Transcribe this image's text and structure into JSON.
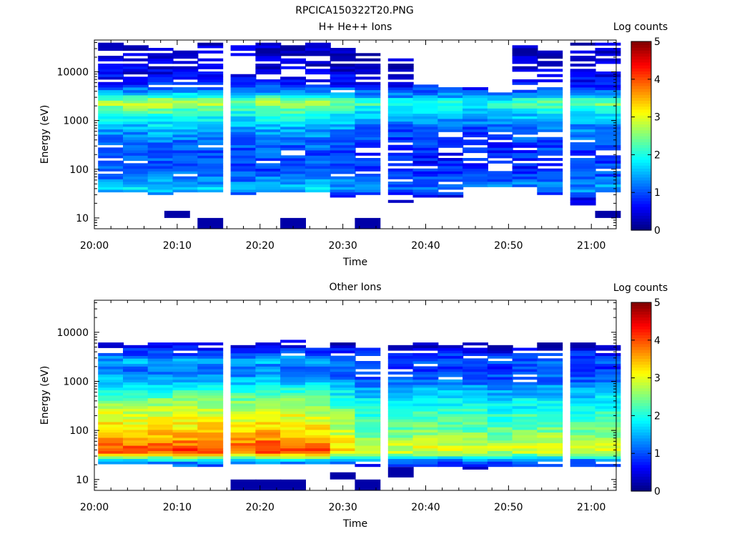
{
  "figure_title": "RPCICA150322T20.PNG",
  "chart_data": [
    {
      "type": "heatmap",
      "title": "H+ He++ Ions",
      "xlabel": "Time",
      "ylabel": "Energy (eV)",
      "x_ticks": [
        "20:00",
        "20:10",
        "20:20",
        "20:30",
        "20:40",
        "20:50",
        "21:00"
      ],
      "xlim": [
        "20:00",
        "21:03"
      ],
      "y_scale": "log",
      "y_ticks": [
        "10",
        "100",
        "1000",
        "10000"
      ],
      "ylim": [
        6,
        45000
      ],
      "colorbar": {
        "label": "Log counts",
        "ticks": [
          "0",
          "1",
          "2",
          "3",
          "4",
          "5"
        ],
        "range": [
          0,
          5
        ],
        "colormap": "jet"
      },
      "time_bins": [
        "20:02",
        "20:05",
        "20:08",
        "20:11",
        "20:14",
        "20:18",
        "20:21",
        "20:24",
        "20:27",
        "20:30",
        "20:33",
        "20:37",
        "20:40",
        "20:43",
        "20:46",
        "20:49",
        "20:52",
        "20:55",
        "20:59",
        "21:02"
      ],
      "profile": {
        "energy_ev": [
          6,
          10,
          14,
          20,
          28,
          35,
          40,
          50,
          70,
          100,
          150,
          200,
          300,
          500,
          700,
          1000,
          1400,
          1800,
          2200,
          2600,
          3000,
          4000,
          6000,
          10000,
          20000,
          45000
        ],
        "log_counts": [
          0.2,
          0.3,
          0.4,
          0.5,
          0.8,
          1.4,
          1.7,
          1.5,
          1.2,
          1.0,
          1.0,
          1.0,
          1.1,
          1.3,
          1.5,
          1.8,
          2.1,
          2.4,
          2.7,
          2.6,
          2.1,
          1.3,
          0.8,
          0.5,
          0.4,
          0.3
        ]
      },
      "time_factor": [
        1.0,
        1.0,
        1.05,
        1.0,
        1.0,
        0.9,
        1.0,
        1.0,
        1.0,
        0.9,
        0.8,
        0.7,
        0.75,
        0.75,
        0.7,
        0.75,
        0.8,
        0.85,
        0.85,
        0.9
      ],
      "low_cutoff_ev": [
        32,
        32,
        30,
        32,
        32,
        30,
        32,
        32,
        32,
        28,
        28,
        22,
        28,
        28,
        45,
        45,
        45,
        24,
        18,
        28
      ],
      "high_cutoff_ev": [
        40000,
        40000,
        35000,
        35000,
        40000,
        35000,
        40000,
        35000,
        40000,
        38000,
        25000,
        20000,
        7000,
        5000,
        5000,
        4000,
        35000,
        40000,
        40000,
        40000
      ],
      "low_energy_blocks": [
        {
          "time": "20:14",
          "energy_range_ev": [
            6,
            10
          ],
          "log_counts": 0.2
        },
        {
          "time": "20:24",
          "energy_range_ev": [
            6,
            10
          ],
          "log_counts": 0.2
        },
        {
          "time": "20:33",
          "energy_range_ev": [
            6,
            10
          ],
          "log_counts": 0.2
        },
        {
          "time": "20:10",
          "energy_range_ev": [
            10,
            14
          ],
          "log_counts": 0.2
        },
        {
          "time": "21:02",
          "energy_range_ev": [
            10,
            14
          ],
          "log_counts": 0.2
        }
      ]
    },
    {
      "type": "heatmap",
      "title": "Other Ions",
      "xlabel": "Time",
      "ylabel": "Energy (eV)",
      "x_ticks": [
        "20:00",
        "20:10",
        "20:20",
        "20:30",
        "20:40",
        "20:50",
        "21:00"
      ],
      "xlim": [
        "20:00",
        "21:03"
      ],
      "y_scale": "log",
      "y_ticks": [
        "10",
        "100",
        "1000",
        "10000"
      ],
      "ylim": [
        6,
        45000
      ],
      "colorbar": {
        "label": "Log counts",
        "ticks": [
          "0",
          "1",
          "2",
          "3",
          "4",
          "5"
        ],
        "range": [
          0,
          5
        ],
        "colormap": "jet"
      },
      "time_bins": [
        "20:02",
        "20:05",
        "20:08",
        "20:11",
        "20:14",
        "20:18",
        "20:21",
        "20:24",
        "20:27",
        "20:30",
        "20:33",
        "20:37",
        "20:40",
        "20:43",
        "20:46",
        "20:49",
        "20:52",
        "20:55",
        "20:59",
        "21:02"
      ],
      "profile": {
        "energy_ev": [
          6,
          14,
          18,
          22,
          25,
          28,
          32,
          38,
          45,
          60,
          80,
          100,
          150,
          200,
          300,
          500,
          700,
          1000,
          1500,
          2000,
          2500,
          3000,
          4000,
          5000,
          6000,
          45000
        ],
        "log_counts": [
          0.3,
          0.6,
          0.9,
          1.3,
          1.8,
          2.5,
          3.3,
          4.1,
          4.0,
          3.7,
          3.5,
          3.3,
          3.1,
          3.0,
          2.7,
          2.3,
          2.0,
          1.6,
          1.3,
          1.2,
          1.5,
          1.3,
          0.9,
          0.6,
          0.4,
          0.3
        ]
      },
      "time_factor": [
        1.0,
        0.98,
        1.0,
        1.0,
        1.02,
        0.98,
        1.03,
        1.0,
        0.97,
        0.85,
        0.72,
        0.72,
        0.74,
        0.74,
        0.72,
        0.7,
        0.72,
        0.74,
        0.72,
        0.74
      ],
      "low_cutoff_ev": [
        22,
        22,
        22,
        18,
        18,
        22,
        22,
        22,
        22,
        22,
        16,
        16,
        18,
        18,
        16,
        18,
        18,
        18,
        18,
        18
      ],
      "high_cutoff_ev": [
        6000,
        6000,
        6500,
        7000,
        6500,
        6000,
        6000,
        7000,
        6500,
        6000,
        5500,
        5500,
        6000,
        6000,
        6000,
        5500,
        6000,
        6000,
        6000,
        6000
      ],
      "low_energy_blocks": [
        {
          "time": "20:18",
          "energy_range_ev": [
            6,
            10
          ],
          "log_counts": 0.2
        },
        {
          "time": "20:21",
          "energy_range_ev": [
            6,
            10
          ],
          "log_counts": 0.2
        },
        {
          "time": "20:24",
          "energy_range_ev": [
            6,
            10
          ],
          "log_counts": 0.2
        },
        {
          "time": "20:33",
          "energy_range_ev": [
            6,
            10
          ],
          "log_counts": 0.2
        },
        {
          "time": "20:30",
          "energy_range_ev": [
            10,
            14
          ],
          "log_counts": 0.2
        },
        {
          "time": "20:37",
          "energy_range_ev": [
            11,
            18
          ],
          "log_counts": 0.2
        }
      ]
    }
  ]
}
